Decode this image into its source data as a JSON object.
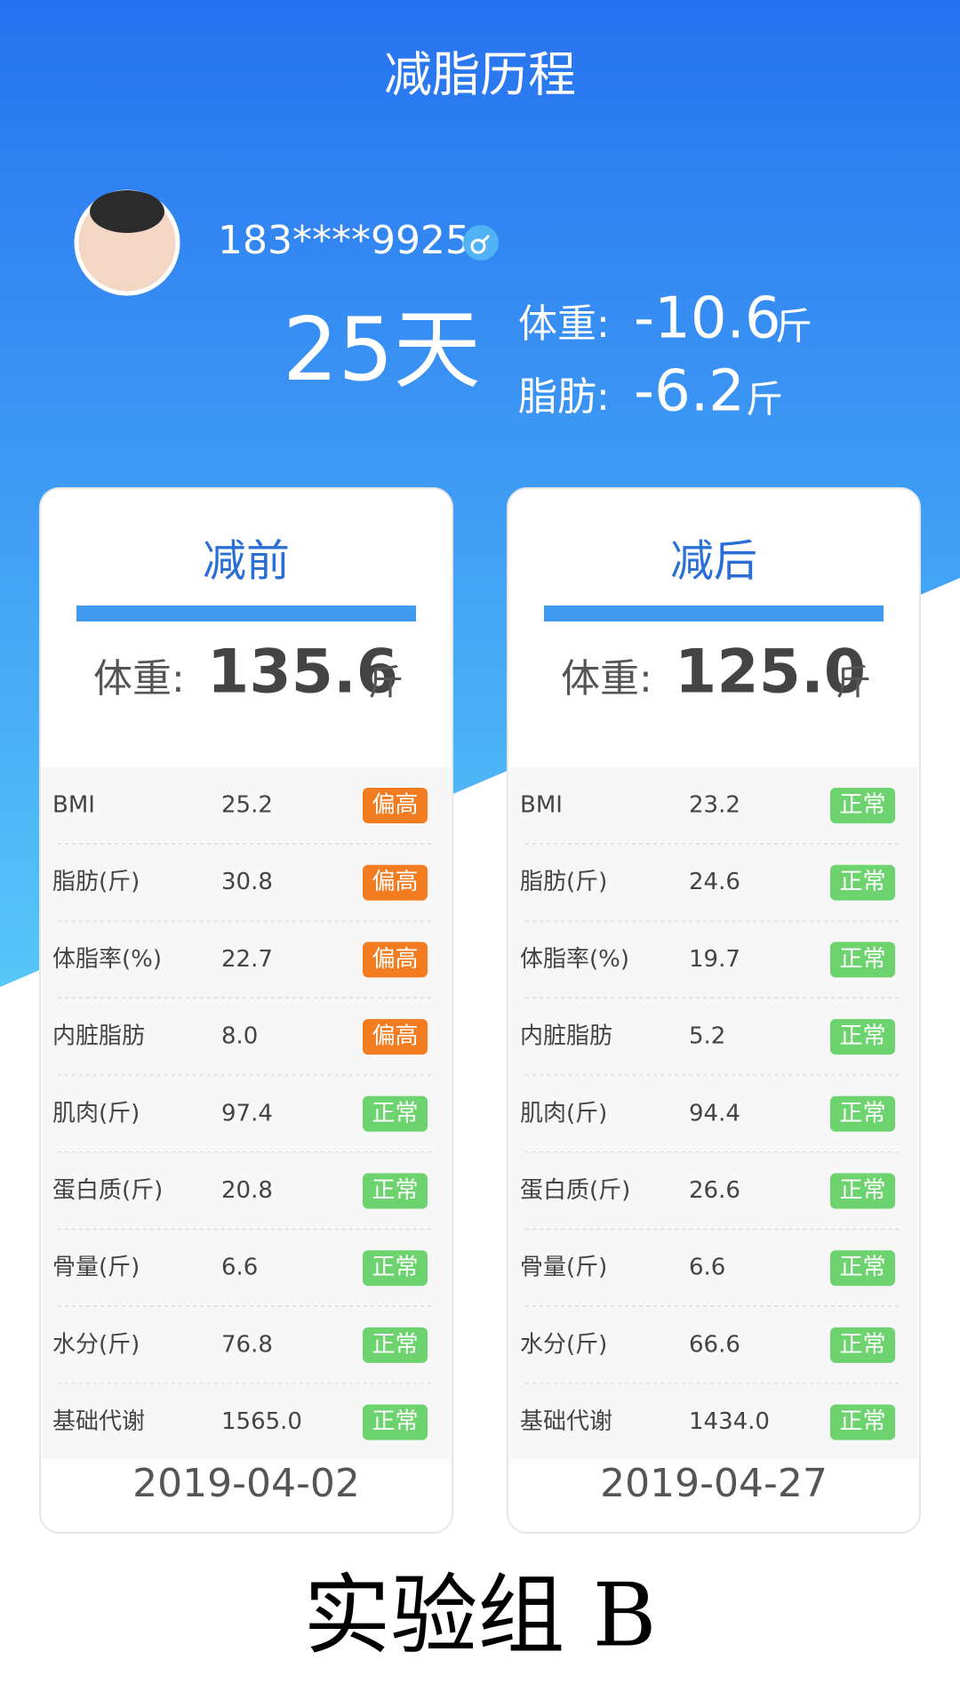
{
  "header": {
    "title": "减脂历程"
  },
  "user": {
    "phone": "183****9925",
    "days": "25天",
    "weight_label": "体重:",
    "weight_change": "-10.6",
    "weight_unit": "斤",
    "fat_label": "脂肪:",
    "fat_change": "-6.2",
    "fat_unit": "斤"
  },
  "cards": [
    {
      "title": "减前",
      "weight_label": "体重:",
      "weight": "135.6",
      "unit": "斤",
      "date": "2019-04-02",
      "rows": [
        {
          "label": "BMI",
          "value": "25.2",
          "status": "偏高",
          "color": "#f47c20"
        },
        {
          "label": "脂肪(斤)",
          "value": "30.8",
          "status": "偏高",
          "color": "#f47c20"
        },
        {
          "label": "体脂率(%)",
          "value": "22.7",
          "status": "偏高",
          "color": "#f47c20"
        },
        {
          "label": "内脏脂肪",
          "value": "8.0",
          "status": "偏高",
          "color": "#f47c20"
        },
        {
          "label": "肌肉(斤)",
          "value": "97.4",
          "status": "正常",
          "color": "#6dd36f"
        },
        {
          "label": "蛋白质(斤)",
          "value": "20.8",
          "status": "正常",
          "color": "#6dd36f"
        },
        {
          "label": "骨量(斤)",
          "value": "6.6",
          "status": "正常",
          "color": "#6dd36f"
        },
        {
          "label": "水分(斤)",
          "value": "76.8",
          "status": "正常",
          "color": "#6dd36f"
        },
        {
          "label": "基础代谢",
          "value": "1565.0",
          "status": "正常",
          "color": "#6dd36f"
        }
      ]
    },
    {
      "title": "减后",
      "weight_label": "体重:",
      "weight": "125.0",
      "unit": "斤",
      "date": "2019-04-27",
      "rows": [
        {
          "label": "BMI",
          "value": "23.2",
          "status": "正常",
          "color": "#6dd36f"
        },
        {
          "label": "脂肪(斤)",
          "value": "24.6",
          "status": "正常",
          "color": "#6dd36f"
        },
        {
          "label": "体脂率(%)",
          "value": "19.7",
          "status": "正常",
          "color": "#6dd36f"
        },
        {
          "label": "内脏脂肪",
          "value": "5.2",
          "status": "正常",
          "color": "#6dd36f"
        },
        {
          "label": "肌肉(斤)",
          "value": "94.4",
          "status": "正常",
          "color": "#6dd36f"
        },
        {
          "label": "蛋白质(斤)",
          "value": "26.6",
          "status": "正常",
          "color": "#6dd36f"
        },
        {
          "label": "骨量(斤)",
          "value": "6.6",
          "status": "正常",
          "color": "#6dd36f"
        },
        {
          "label": "水分(斤)",
          "value": "66.6",
          "status": "正常",
          "color": "#6dd36f"
        },
        {
          "label": "基础代谢",
          "value": "1434.0",
          "status": "正常",
          "color": "#6dd36f"
        }
      ]
    }
  ],
  "caption": "实验组 B"
}
